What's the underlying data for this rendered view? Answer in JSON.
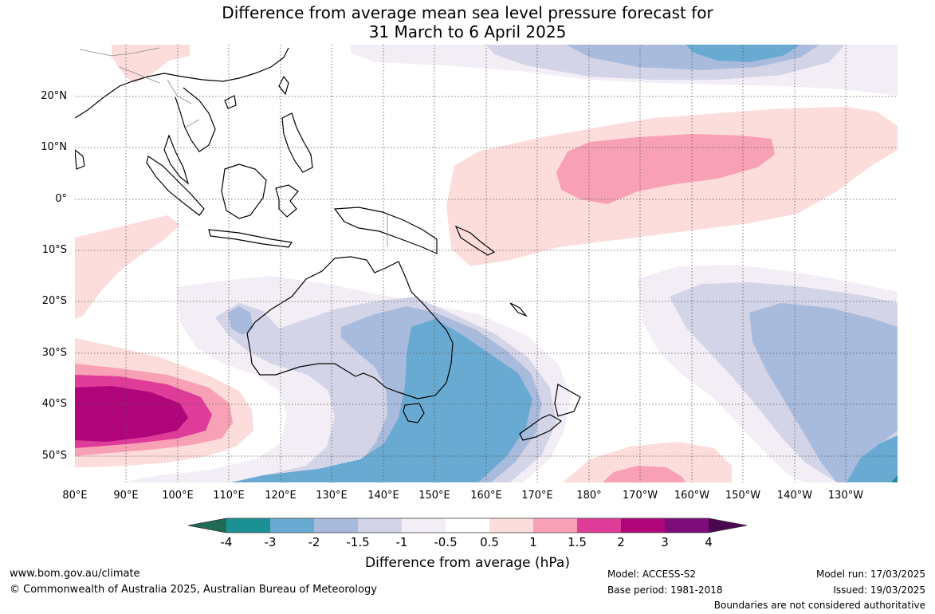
{
  "title": {
    "line1": "Difference from average mean sea level pressure forecast for",
    "line2": "31 March to 6 April 2025"
  },
  "axes": {
    "latitudes": [
      "20°N",
      "10°N",
      "0°",
      "10°S",
      "20°S",
      "30°S",
      "40°S",
      "50°S"
    ],
    "longitudes": [
      "80°E",
      "90°E",
      "100°E",
      "110°E",
      "120°E",
      "130°E",
      "140°E",
      "150°E",
      "160°E",
      "170°E",
      "180°",
      "170°W",
      "160°W",
      "150°W",
      "140°W",
      "130°W"
    ]
  },
  "colorbar": {
    "label": "Difference from average (hPa)",
    "ticks": [
      "-4",
      "-3",
      "-2",
      "-1.5",
      "-1",
      "-0.5",
      "0.5",
      "1",
      "1.5",
      "2",
      "3",
      "4"
    ],
    "colors": {
      "neg4": "#1f6b58",
      "neg3": "#1b9196",
      "neg2": "#68aad1",
      "neg1_5": "#a9bbdd",
      "neg1": "#d3d4e7",
      "neg0_5": "#f3eef5",
      "neutral": "#ffffff",
      "pos0_5": "#fddcdc",
      "pos1": "#f8a1b6",
      "pos1_5": "#de3c98",
      "pos2": "#b0057a",
      "pos3": "#7c0d78",
      "pos4": "#4a0850"
    }
  },
  "footer": {
    "website": "www.bom.gov.au/climate",
    "copyright": "© Commonwealth of Australia 2025, Australian Bureau of Meteorology",
    "model": "Model: ACCESS-S2",
    "base_period": "Base period: 1981-2018",
    "model_run": "Model run: 17/03/2025",
    "issued": "Issued: 19/03/2025",
    "disclaimer": "Boundaries are not considered authoritative"
  }
}
